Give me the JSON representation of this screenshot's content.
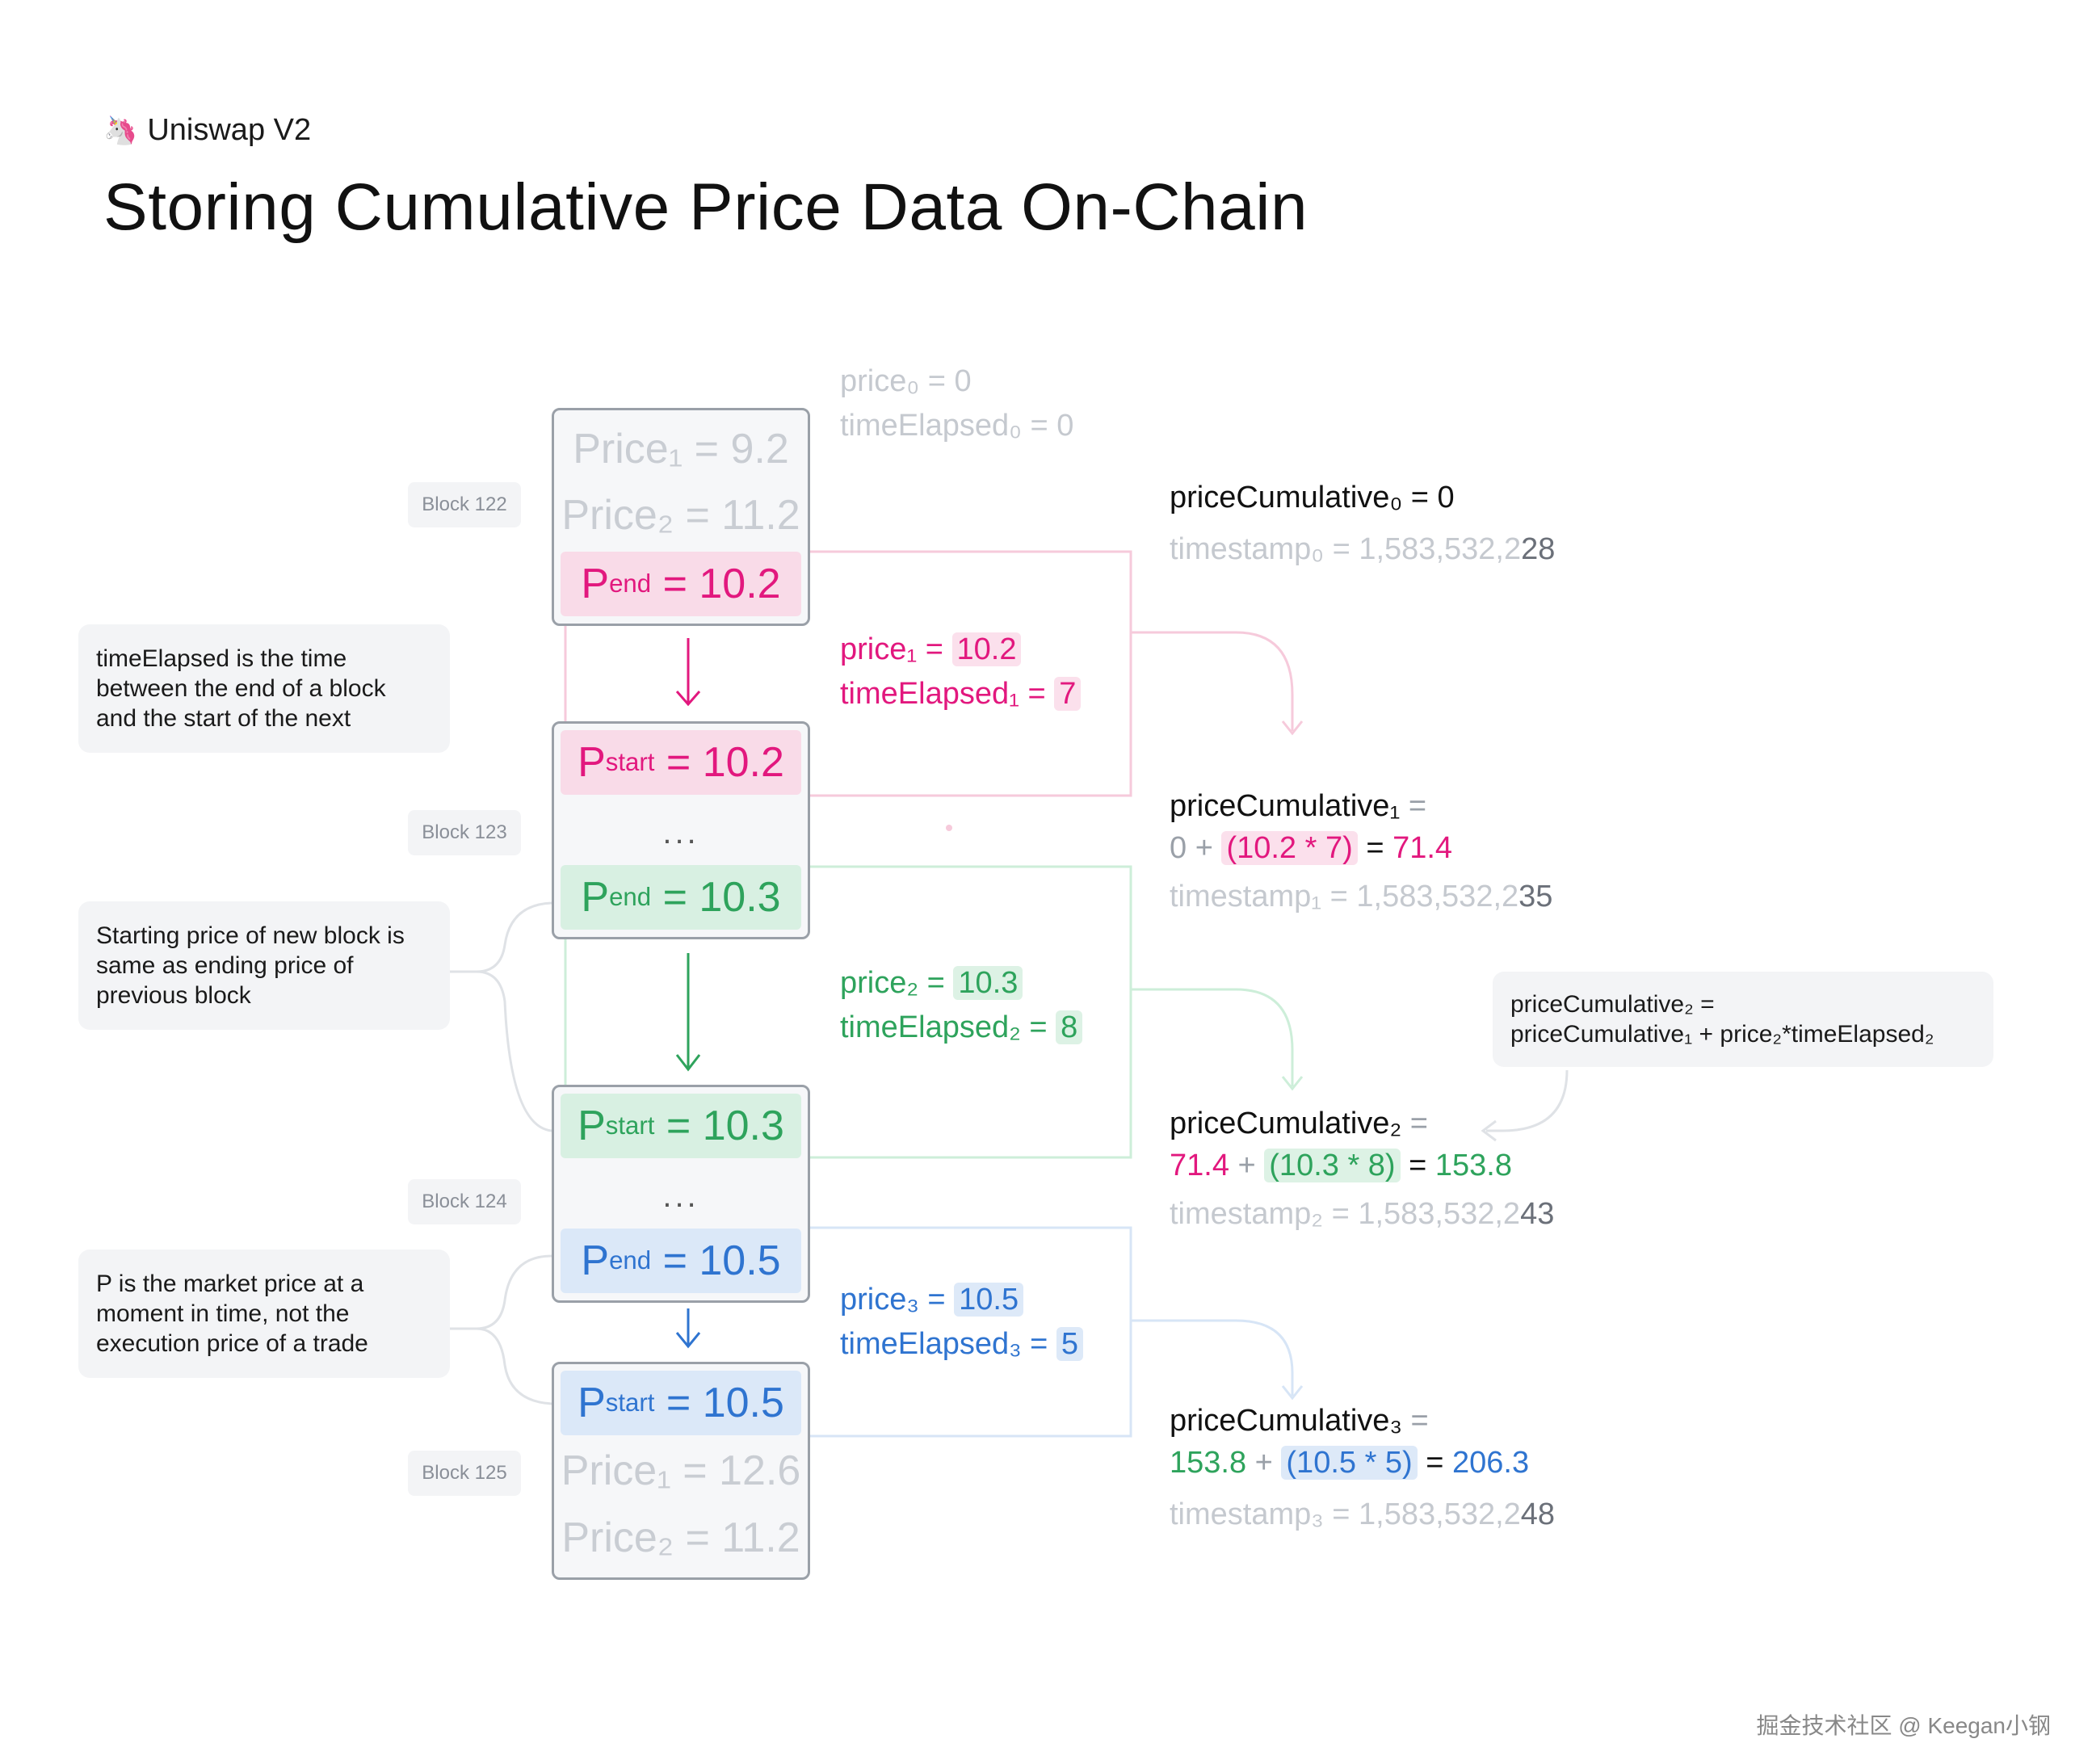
{
  "header": {
    "logo_icon": "unicorn-icon",
    "brand": "Uniswap V2",
    "title": "Storing Cumulative Price Data On-Chain"
  },
  "blocks": {
    "b122": {
      "label": "Block 122",
      "price1": "Price₁ = 9.2",
      "price2": "Price₂ = 11.2",
      "pend_p": "P",
      "pend_sub": "end",
      "pend_val": " = 10.2"
    },
    "b123": {
      "label": "Block 123",
      "pstart_p": "P",
      "pstart_sub": "start",
      "pstart_val": " = 10.2",
      "dots": "...",
      "pend_p": "P",
      "pend_sub": "end",
      "pend_val": " = 10.3"
    },
    "b124": {
      "label": "Block 124",
      "pstart_p": "P",
      "pstart_sub": "start",
      "pstart_val": " = 10.3",
      "dots": "...",
      "pend_p": "P",
      "pend_sub": "end",
      "pend_val": " = 10.5"
    },
    "b125": {
      "label": "Block 125",
      "pstart_p": "P",
      "pstart_sub": "start",
      "pstart_val": " = 10.5",
      "price1": "Price₁ = 12.6",
      "price2": "Price₂ = 11.2"
    }
  },
  "notes": {
    "n1": "timeElapsed is the time between the end of a block and the start of the next",
    "n2": "Starting price of new block is same as ending price of previous block",
    "n3": "P is the market price at a moment in time, not the execution price of a trade",
    "formula_line1": "priceCumulative₂ =",
    "formula_line2": "priceCumulative₁ + price₂*timeElapsed₂"
  },
  "middle": {
    "m0": {
      "price": "price₀ = 0",
      "time": "timeElapsed₀ = 0"
    },
    "m1": {
      "price_label": "price₁ = ",
      "price_val": "10.2",
      "time_label": "timeElapsed₁ = ",
      "time_val": "7"
    },
    "m2": {
      "price_label": "price₂ = ",
      "price_val": "10.3",
      "time_label": "timeElapsed₂ = ",
      "time_val": "8"
    },
    "m3": {
      "price_label": "price₃ = ",
      "price_val": "10.5",
      "time_label": "timeElapsed₃ = ",
      "time_val": "5"
    }
  },
  "right": {
    "r0": {
      "pc": "priceCumulative₀ = 0",
      "ts_a": "timestamp₀ = 1,583,532,2",
      "ts_b": "28"
    },
    "r1": {
      "pc": "priceCumulative₁",
      "eq": " =",
      "prev": "0",
      "plus": " + ",
      "expr": "(10.2 * 7)",
      "eqs": " = ",
      "result": "71.4",
      "ts_a": "timestamp₁ = 1,583,532,2",
      "ts_b": "35"
    },
    "r2": {
      "pc": "priceCumulative₂",
      "eq": " =",
      "prev": "71.4",
      "plus": " + ",
      "expr": "(10.3 * 8)",
      "eqs": " = ",
      "result": "153.8",
      "ts_a": "timestamp₂ = 1,583,532,2",
      "ts_b": "43"
    },
    "r3": {
      "pc": "priceCumulative₃",
      "eq": " =",
      "prev": "153.8",
      "plus": " + ",
      "expr": "(10.5 * 5)",
      "eqs": " = ",
      "result": "206.3",
      "ts_a": "timestamp₃ = 1,583,532,2",
      "ts_b": "48"
    }
  },
  "watermark": "掘金技术社区 @ Keegan小钢",
  "colors": {
    "pink": "#e2187e",
    "green": "#2ea35c",
    "blue": "#2f74d0",
    "grey": "#c5c9cf"
  }
}
